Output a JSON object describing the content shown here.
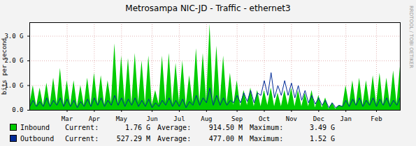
{
  "chart_data": {
    "type": "line",
    "title": "Metrosampa NIC-JD - Traffic - ethernet3",
    "y_label": "bits per second",
    "watermark": "RRDTOOL / TOBI OETIKER",
    "grid": true,
    "ylim": [
      0,
      3.55
    ],
    "yticks": [
      {
        "value": 0,
        "label": "0.0"
      },
      {
        "value": 1,
        "label": "1.0 G"
      },
      {
        "value": 2,
        "label": "2.0 G"
      },
      {
        "value": 3,
        "label": "3.0 G"
      }
    ],
    "categories": [
      null,
      null,
      null,
      null,
      null,
      null,
      null,
      null,
      null,
      null,
      null,
      "Mar",
      null,
      null,
      null,
      null,
      null,
      null,
      null,
      "Apr",
      null,
      null,
      null,
      null,
      null,
      null,
      null,
      "May",
      null,
      null,
      null,
      null,
      null,
      null,
      null,
      null,
      "Jun",
      null,
      null,
      null,
      null,
      null,
      null,
      null,
      "Jul",
      null,
      null,
      null,
      null,
      null,
      null,
      null,
      "Aug",
      null,
      null,
      null,
      null,
      null,
      null,
      null,
      null,
      "Sep",
      null,
      null,
      null,
      null,
      null,
      null,
      null,
      "Oct",
      null,
      null,
      null,
      null,
      null,
      null,
      null,
      "Nov",
      null,
      null,
      null,
      null,
      null,
      null,
      null,
      "Dec",
      null,
      null,
      null,
      null,
      null,
      null,
      null,
      "Jan",
      null,
      null,
      null,
      null,
      null,
      null,
      null,
      null,
      "Feb",
      null,
      null,
      null,
      null,
      null,
      null,
      null
    ],
    "series": [
      {
        "name": "Inbound",
        "type": "area",
        "color": "#00cc00",
        "values": [
          0.2,
          1.0,
          0.15,
          0.9,
          0.2,
          1.1,
          0.2,
          1.3,
          0.25,
          1.7,
          0.2,
          1.2,
          0.2,
          1.2,
          0.15,
          1.0,
          0.2,
          1.3,
          0.2,
          1.5,
          0.25,
          1.4,
          0.2,
          1.2,
          0.3,
          2.7,
          0.25,
          2.2,
          0.3,
          2.1,
          0.25,
          2.3,
          0.3,
          2.0,
          0.25,
          2.2,
          0.2,
          0.8,
          0.25,
          2.2,
          0.3,
          2.3,
          0.25,
          1.9,
          0.3,
          2.0,
          0.2,
          1.4,
          0.3,
          2.5,
          0.3,
          2.3,
          0.35,
          3.49,
          0.3,
          2.6,
          0.3,
          2.2,
          0.25,
          1.5,
          0.2,
          1.2,
          0.15,
          0.8,
          0.2,
          0.9,
          0.15,
          0.8,
          0.15,
          0.8,
          0.2,
          0.9,
          0.15,
          0.7,
          0.15,
          0.8,
          0.2,
          0.9,
          0.15,
          0.8,
          0.15,
          0.7,
          0.15,
          0.8,
          0.1,
          0.6,
          0.1,
          0.5,
          0.05,
          0.3,
          0.05,
          0.2,
          0.15,
          1.0,
          0.2,
          1.2,
          0.2,
          1.3,
          0.2,
          1.2,
          0.25,
          1.4,
          0.25,
          1.5,
          0.2,
          1.3,
          0.25,
          1.6,
          0.25,
          1.76
        ],
        "stats": [
          {
            "name": "Current:",
            "value": 1.76,
            "label": "1.76 G"
          },
          {
            "name": "Average:",
            "value": 0.9145,
            "label": "914.50 M"
          },
          {
            "name": "Maximum:",
            "value": 3.49,
            "label": "3.49 G"
          }
        ]
      },
      {
        "name": "Outbound",
        "type": "line",
        "color": "#002a97",
        "values": [
          0.15,
          0.4,
          0.15,
          0.35,
          0.15,
          0.5,
          0.15,
          0.4,
          0.2,
          0.5,
          0.15,
          0.45,
          0.15,
          0.4,
          0.1,
          0.35,
          0.15,
          0.45,
          0.15,
          0.5,
          0.2,
          0.5,
          0.15,
          0.4,
          0.2,
          0.6,
          0.2,
          0.5,
          0.15,
          0.45,
          0.2,
          0.5,
          0.15,
          0.4,
          0.15,
          0.45,
          0.1,
          0.3,
          0.15,
          0.4,
          0.2,
          0.5,
          0.15,
          0.4,
          0.15,
          0.45,
          0.1,
          0.35,
          0.2,
          0.6,
          0.2,
          0.5,
          0.3,
          0.9,
          0.2,
          0.6,
          0.2,
          0.5,
          0.2,
          0.4,
          0.3,
          0.6,
          0.3,
          0.7,
          0.35,
          0.8,
          0.3,
          0.7,
          0.6,
          1.2,
          0.6,
          1.52,
          0.5,
          1.0,
          0.6,
          1.2,
          0.6,
          1.1,
          0.5,
          1.0,
          0.4,
          0.8,
          0.3,
          0.6,
          0.25,
          0.5,
          0.2,
          0.4,
          0.1,
          0.3,
          0.1,
          0.2,
          0.15,
          0.4,
          0.15,
          0.45,
          0.2,
          0.5,
          0.15,
          0.4,
          0.2,
          0.5,
          0.15,
          0.45,
          0.2,
          0.5,
          0.15,
          0.4,
          0.2,
          0.527
        ],
        "stats": [
          {
            "name": "Current:",
            "value": 0.52729,
            "label": "527.29 M"
          },
          {
            "name": "Average:",
            "value": 0.477,
            "label": "477.00 M"
          },
          {
            "name": "Maximum:",
            "value": 1.52,
            "label": "1.52 G"
          }
        ]
      }
    ]
  }
}
